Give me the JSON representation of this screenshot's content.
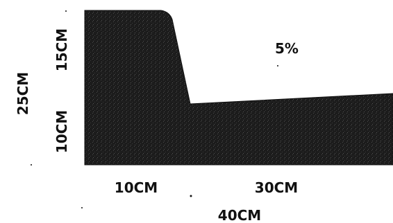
{
  "figure": {
    "slope_label": "5%",
    "dimensions": {
      "total_height": "25CM",
      "upper_height": "15CM",
      "lower_height": "10CM",
      "top_width": "10CM",
      "slope_width": "30CM",
      "total_width": "40CM"
    }
  },
  "colors": {
    "fill": "#1c1c1c",
    "text": "#111111",
    "background": "#ffffff"
  }
}
